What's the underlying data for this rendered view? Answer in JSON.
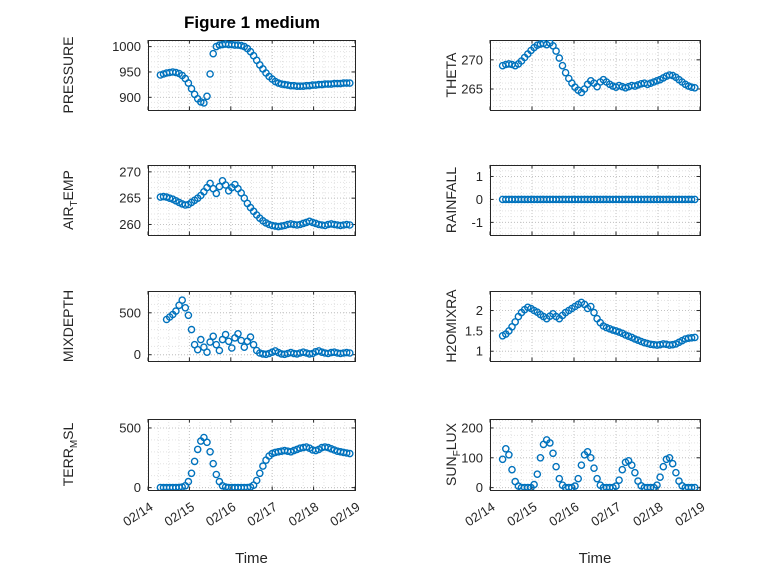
{
  "title": "Figure 1 medium",
  "xlabel": "Time",
  "style": {
    "marker_color": "#0072BD",
    "axis_color": "#262626",
    "tick_label_color": "#262626",
    "grid_color": "#c3c3c3",
    "minor_grid_color": "#e3e3e3",
    "background": "#ffffff",
    "title_color": "#000000"
  },
  "x_axis": {
    "lim": [
      0,
      5
    ],
    "tick_positions": [
      0,
      1,
      2,
      3,
      4,
      5
    ],
    "tick_labels": [
      "02/14",
      "02/15",
      "02/16",
      "02/17",
      "02/18",
      "02/19"
    ],
    "minor_step": 0.25
  },
  "x_common": [
    0.3,
    0.375,
    0.45,
    0.525,
    0.6,
    0.675,
    0.75,
    0.825,
    0.9,
    0.975,
    1.05,
    1.125,
    1.2,
    1.275,
    1.35,
    1.425,
    1.5,
    1.575,
    1.65,
    1.725,
    1.8,
    1.875,
    1.95,
    2.025,
    2.1,
    2.175,
    2.25,
    2.325,
    2.4,
    2.475,
    2.55,
    2.625,
    2.7,
    2.775,
    2.85,
    2.925,
    3.0,
    3.075,
    3.15,
    3.225,
    3.3,
    3.375,
    3.45,
    3.525,
    3.6,
    3.675,
    3.75,
    3.825,
    3.9,
    3.975,
    4.05,
    4.125,
    4.2,
    4.275,
    4.35,
    4.425,
    4.5,
    4.575,
    4.65,
    4.725,
    4.8,
    4.875
  ],
  "chart_data": [
    {
      "type": "scatter",
      "name": "pressure",
      "row": 0,
      "col": 0,
      "ylabel_text": "PRESSURE",
      "ylabel_segments": [
        {
          "text": "PRESSURE",
          "sub": false
        }
      ],
      "ylim": [
        875,
        1013
      ],
      "yticks": [
        900,
        950,
        1000
      ],
      "y_minor_step": 10,
      "y": [
        944,
        946,
        948,
        949,
        950,
        949,
        947,
        943,
        937,
        928,
        917,
        906,
        897,
        891,
        889,
        902,
        946,
        986,
        1000,
        1003,
        1004,
        1005,
        1004,
        1004,
        1003,
        1003,
        1002,
        1000,
        996,
        990,
        982,
        973,
        964,
        956,
        948,
        941,
        936,
        931,
        928,
        926,
        925,
        924,
        923,
        923,
        922,
        922,
        922,
        923,
        923,
        924,
        924,
        925,
        925,
        926,
        926,
        926,
        927,
        927,
        927,
        928,
        928,
        928
      ]
    },
    {
      "type": "scatter",
      "name": "theta",
      "row": 0,
      "col": 1,
      "ylabel_text": "THETA",
      "ylabel_segments": [
        {
          "text": "THETA",
          "sub": false
        }
      ],
      "ylim": [
        261.4,
        273.4
      ],
      "yticks": [
        265,
        270
      ],
      "y_minor_step": 1,
      "y": [
        269,
        269.2,
        269.3,
        269.2,
        269,
        269.3,
        269.8,
        270.4,
        271,
        271.6,
        272.1,
        272.5,
        272.7,
        272.8,
        272.6,
        272.9,
        272.4,
        271.5,
        270.3,
        269,
        267.8,
        266.8,
        266,
        265.3,
        264.8,
        264.4,
        265,
        265.8,
        266.4,
        266,
        265.4,
        266.2,
        266.6,
        266.2,
        265.8,
        265.5,
        265.3,
        265.6,
        265.4,
        265.2,
        265.4,
        265.6,
        265.5,
        265.7,
        265.9,
        266,
        265.8,
        266,
        266.2,
        266.4,
        266.6,
        266.9,
        267.2,
        267.4,
        267.3,
        267,
        266.6,
        266.2,
        265.8,
        265.5,
        265.3,
        265.2
      ]
    },
    {
      "type": "scatter",
      "name": "air-temp",
      "row": 1,
      "col": 0,
      "ylabel_text": "AIR_TEMP",
      "ylabel_segments": [
        {
          "text": "AIR",
          "sub": false
        },
        {
          "text": "T",
          "sub": true
        },
        {
          "text": "EMP",
          "sub": false
        }
      ],
      "ylim": [
        258,
        271.3
      ],
      "yticks": [
        260,
        265,
        270
      ],
      "y_minor_step": 1,
      "y": [
        265.2,
        265.3,
        265.2,
        265,
        264.8,
        264.5,
        264.2,
        263.9,
        263.7,
        263.8,
        264.2,
        264.6,
        265,
        265.5,
        266.2,
        267,
        267.8,
        266.8,
        265.9,
        267.2,
        268.3,
        267.5,
        266.4,
        267,
        267.6,
        266.8,
        266,
        265,
        264,
        263.2,
        262.5,
        261.8,
        261.2,
        260.7,
        260.3,
        260,
        259.8,
        259.7,
        259.6,
        259.7,
        259.8,
        260,
        260.1,
        260,
        259.9,
        260,
        260.2,
        260.4,
        260.6,
        260.4,
        260.2,
        260,
        259.9,
        259.8,
        260,
        260.1,
        260,
        259.9,
        259.8,
        259.9,
        260,
        259.9
      ]
    },
    {
      "type": "scatter",
      "name": "rainfall",
      "row": 1,
      "col": 1,
      "ylabel_text": "RAINFALL",
      "ylabel_segments": [
        {
          "text": "RAINFALL",
          "sub": false
        }
      ],
      "ylim": [
        -1.55,
        1.5
      ],
      "yticks": [
        -1,
        0,
        1
      ],
      "y_minor_step": 0.25,
      "y": [
        0,
        0,
        0,
        0,
        0,
        0,
        0,
        0,
        0,
        0,
        0,
        0,
        0,
        0,
        0,
        0,
        0,
        0,
        0,
        0,
        0,
        0,
        0,
        0,
        0,
        0,
        0,
        0,
        0,
        0,
        0,
        0,
        0,
        0,
        0,
        0,
        0,
        0,
        0,
        0,
        0,
        0,
        0,
        0,
        0,
        0,
        0,
        0,
        0,
        0,
        0,
        0,
        0,
        0,
        0,
        0,
        0,
        0,
        0,
        0,
        0,
        0
      ]
    },
    {
      "type": "scatter",
      "name": "mixdepth",
      "row": 2,
      "col": 0,
      "ylabel_text": "MIXDEPTH",
      "ylabel_segments": [
        {
          "text": "MIXDEPTH",
          "sub": false
        }
      ],
      "ylim": [
        -75,
        760
      ],
      "yticks": [
        0,
        500
      ],
      "y_minor_step": 100,
      "x_skip": 2,
      "y": [
        420,
        450,
        480,
        520,
        590,
        650,
        560,
        470,
        300,
        120,
        60,
        180,
        90,
        30,
        150,
        220,
        120,
        50,
        180,
        240,
        160,
        80,
        200,
        250,
        170,
        90,
        160,
        210,
        120,
        50,
        20,
        10,
        5,
        15,
        30,
        45,
        25,
        10,
        5,
        15,
        25,
        15,
        10,
        20,
        30,
        20,
        10,
        15,
        35,
        45,
        30,
        20,
        15,
        25,
        30,
        20,
        15,
        20,
        25,
        20
      ]
    },
    {
      "type": "scatter",
      "name": "h2omixra",
      "row": 2,
      "col": 1,
      "ylabel_text": "H2OMIXRA",
      "ylabel_segments": [
        {
          "text": "H2OMIXRA",
          "sub": false
        }
      ],
      "ylim": [
        0.76,
        2.48
      ],
      "yticks": [
        1,
        1.5,
        2
      ],
      "y_minor_step": 0.25,
      "y": [
        1.38,
        1.42,
        1.5,
        1.6,
        1.72,
        1.85,
        1.95,
        2.02,
        2.08,
        2.05,
        2,
        1.96,
        1.9,
        1.85,
        1.8,
        1.86,
        1.92,
        1.85,
        1.8,
        1.88,
        1.95,
        2,
        2.05,
        2.1,
        2.15,
        2.2,
        2.15,
        2.05,
        2.1,
        1.95,
        1.8,
        1.7,
        1.62,
        1.58,
        1.55,
        1.52,
        1.5,
        1.47,
        1.44,
        1.4,
        1.37,
        1.34,
        1.3,
        1.27,
        1.24,
        1.21,
        1.19,
        1.17,
        1.16,
        1.15,
        1.16,
        1.18,
        1.17,
        1.15,
        1.16,
        1.18,
        1.22,
        1.26,
        1.3,
        1.32,
        1.33,
        1.34
      ]
    },
    {
      "type": "scatter",
      "name": "terr-msl",
      "row": 3,
      "col": 0,
      "ylabel_text": "TERR_MSL",
      "ylabel_segments": [
        {
          "text": "TERR",
          "sub": false
        },
        {
          "text": "M",
          "sub": true
        },
        {
          "text": "SL",
          "sub": false
        }
      ],
      "ylim": [
        -20,
        575
      ],
      "yticks": [
        0,
        500
      ],
      "y_minor_step": 100,
      "y": [
        0,
        0,
        0,
        0,
        0,
        0,
        2,
        5,
        15,
        50,
        120,
        220,
        320,
        390,
        420,
        380,
        300,
        200,
        110,
        50,
        15,
        5,
        0,
        0,
        0,
        0,
        0,
        0,
        0,
        5,
        20,
        60,
        120,
        180,
        230,
        265,
        285,
        295,
        300,
        305,
        310,
        305,
        300,
        310,
        320,
        330,
        335,
        340,
        330,
        315,
        310,
        320,
        335,
        340,
        335,
        325,
        315,
        305,
        300,
        295,
        290,
        285
      ]
    },
    {
      "type": "scatter",
      "name": "sun-flux",
      "row": 3,
      "col": 1,
      "ylabel_text": "SUN_FLUX",
      "ylabel_segments": [
        {
          "text": "SUN",
          "sub": false
        },
        {
          "text": "F",
          "sub": true
        },
        {
          "text": "LUX",
          "sub": false
        }
      ],
      "ylim": [
        -8,
        230
      ],
      "yticks": [
        0,
        100,
        200
      ],
      "y_minor_step": 25,
      "y": [
        95,
        130,
        110,
        60,
        20,
        5,
        0,
        0,
        0,
        0,
        10,
        45,
        100,
        145,
        160,
        150,
        115,
        70,
        30,
        8,
        0,
        0,
        0,
        5,
        30,
        75,
        110,
        120,
        100,
        65,
        30,
        8,
        0,
        0,
        0,
        0,
        5,
        25,
        60,
        85,
        90,
        75,
        50,
        22,
        6,
        0,
        0,
        0,
        0,
        8,
        35,
        70,
        95,
        100,
        80,
        50,
        22,
        6,
        0,
        0,
        0,
        0
      ]
    }
  ]
}
